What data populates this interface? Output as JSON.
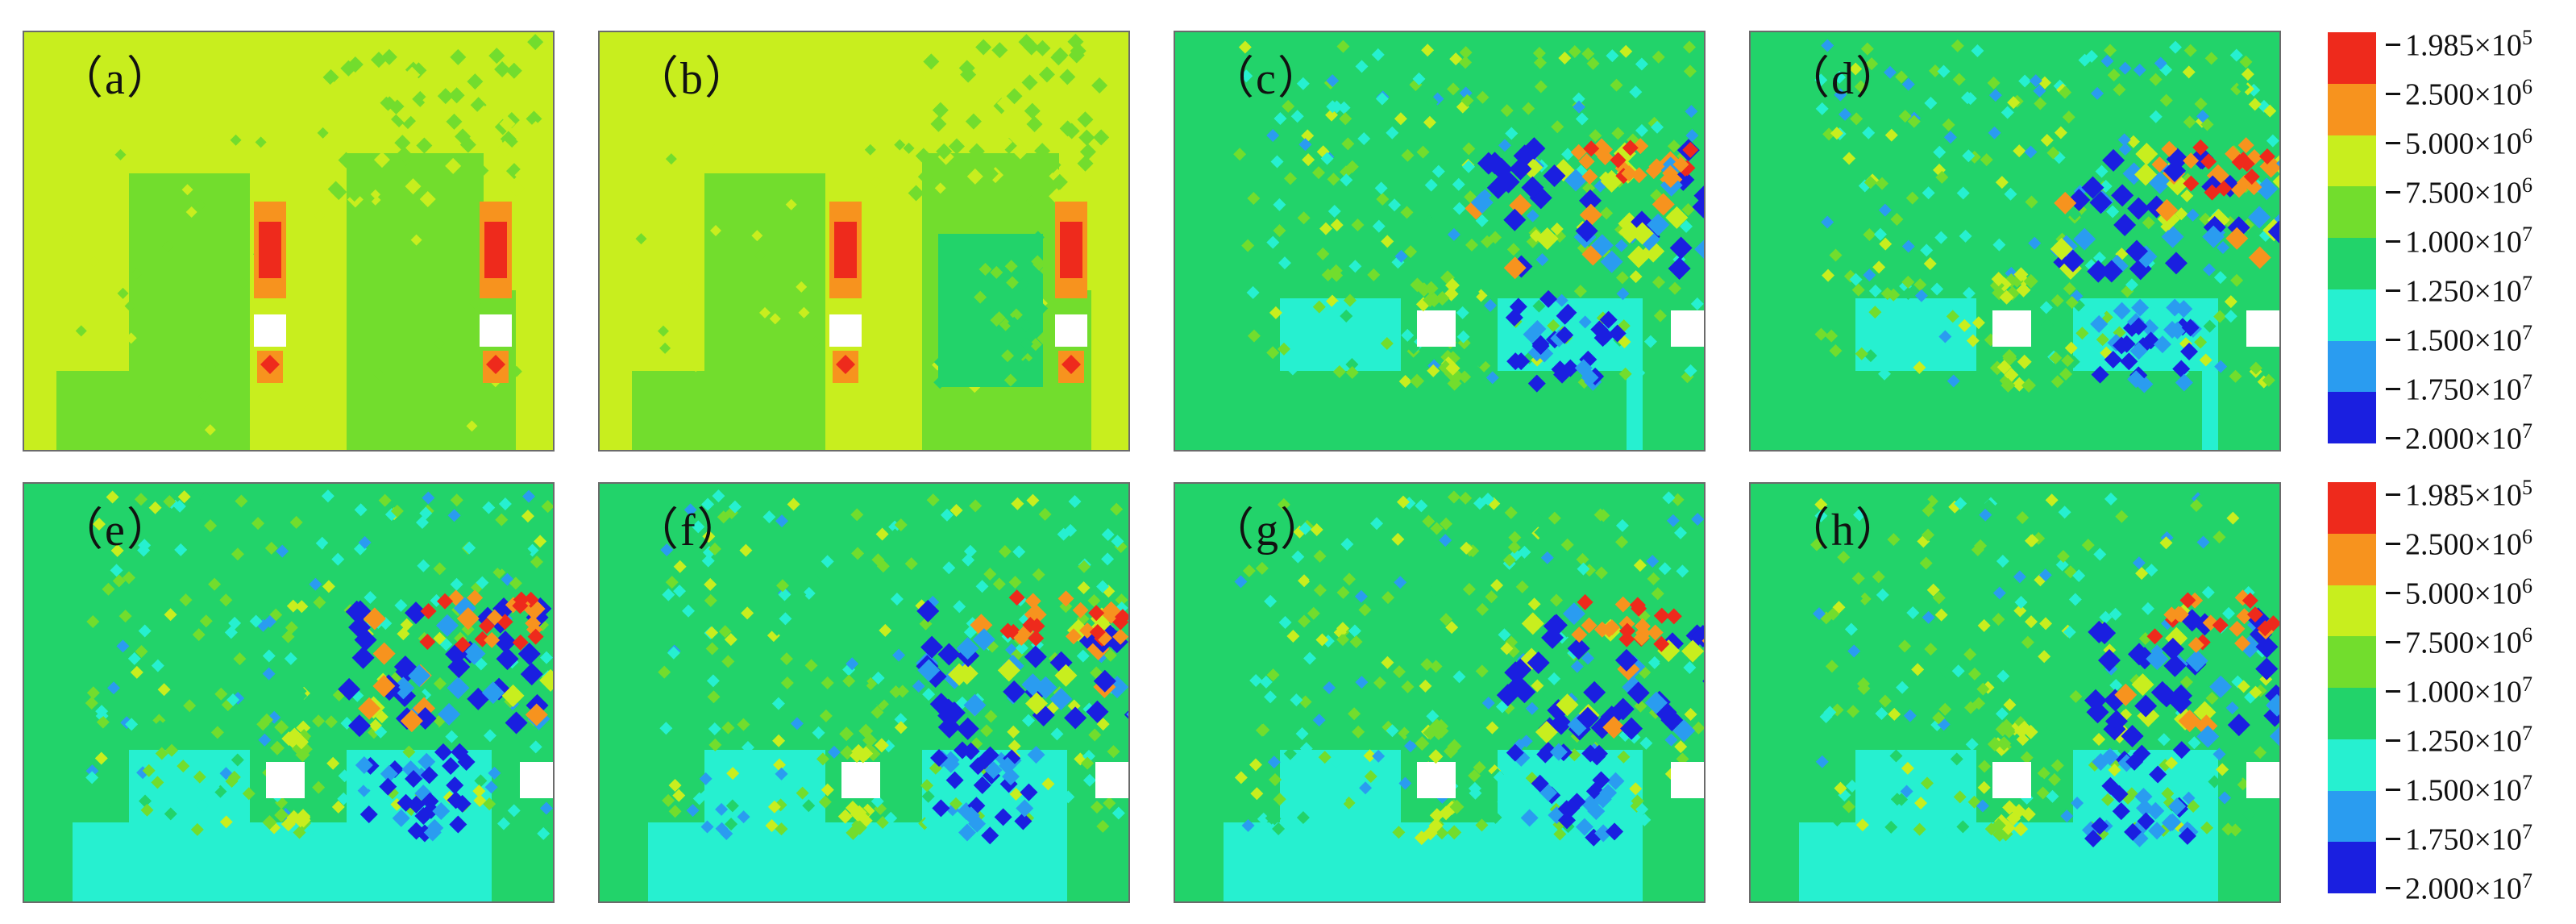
{
  "panels": [
    {
      "id": "a",
      "label": "（a）",
      "scheme": "early"
    },
    {
      "id": "b",
      "label": "（b）",
      "scheme": "early"
    },
    {
      "id": "c",
      "label": "（c）",
      "scheme": "late"
    },
    {
      "id": "d",
      "label": "（d）",
      "scheme": "late"
    },
    {
      "id": "e",
      "label": "（e）",
      "scheme": "late"
    },
    {
      "id": "f",
      "label": "（f）",
      "scheme": "late"
    },
    {
      "id": "g",
      "label": "（g）",
      "scheme": "late"
    },
    {
      "id": "h",
      "label": "（h）",
      "scheme": "late"
    }
  ],
  "colorbar": {
    "colors": [
      "#ee2a1c",
      "#f7931e",
      "#c8ee1e",
      "#72dd2d",
      "#22d36a",
      "#26f0d0",
      "#2a9cf0",
      "#1a1fe0"
    ],
    "ticks": [
      {
        "mantissa": "1.985×10",
        "exp": "5"
      },
      {
        "mantissa": "2.500×10",
        "exp": "6"
      },
      {
        "mantissa": "5.000×10",
        "exp": "6"
      },
      {
        "mantissa": "7.500×10",
        "exp": "6"
      },
      {
        "mantissa": "1.000×10",
        "exp": "7"
      },
      {
        "mantissa": "1.250×10",
        "exp": "7"
      },
      {
        "mantissa": "1.500×10",
        "exp": "7"
      },
      {
        "mantissa": "1.750×10",
        "exp": "7"
      },
      {
        "mantissa": "2.000×10",
        "exp": "7"
      }
    ]
  }
}
